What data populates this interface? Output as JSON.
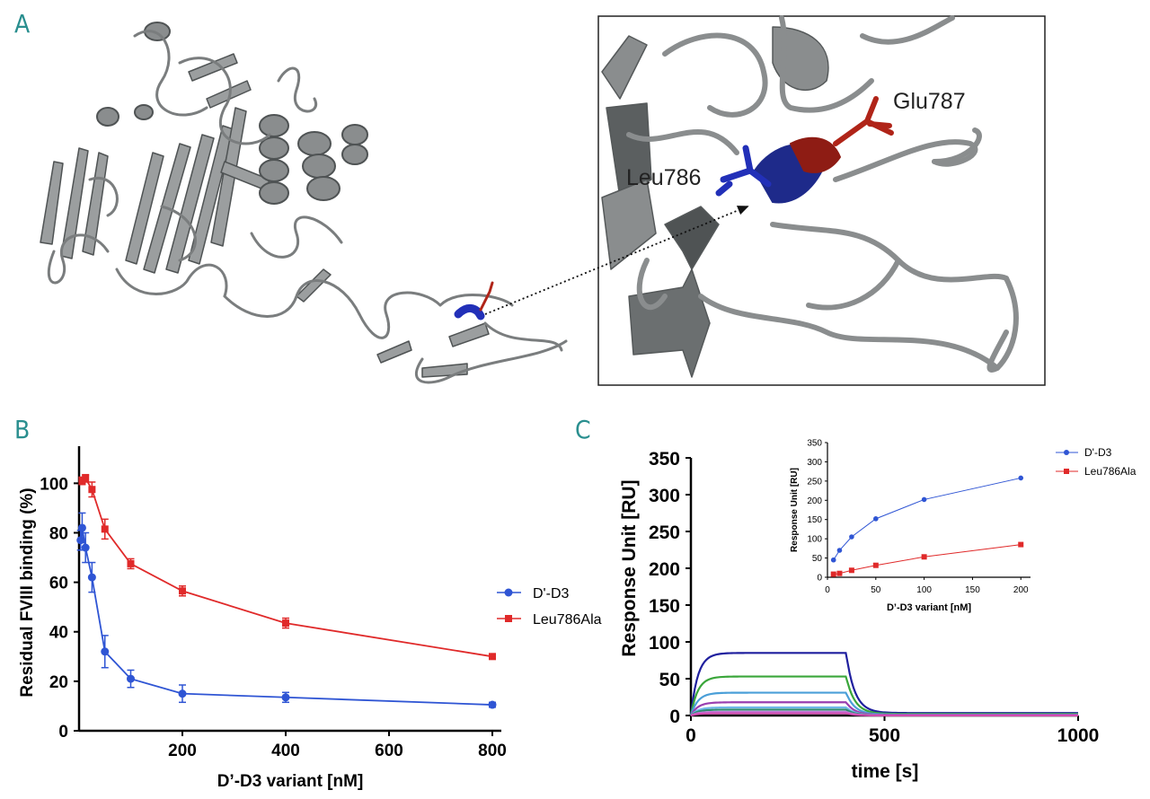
{
  "panels": {
    "a": {
      "letter": "A",
      "labels": {
        "leu": "Leu786",
        "glu": "Glu787"
      },
      "colors": {
        "ribbon": "#8a8d8e",
        "ribbon_dark": "#4f5354",
        "leu": "#2230b8",
        "glu": "#b02418"
      }
    },
    "b": {
      "letter": "B"
    },
    "c": {
      "letter": "C"
    }
  },
  "chart_data": [
    {
      "id": "B",
      "type": "line",
      "xlabel": "D’-D3 variant [nM]",
      "ylabel": "Residual FVIII binding (%)",
      "xlim": [
        0,
        800
      ],
      "ylim": [
        0,
        115
      ],
      "xticks": [
        200,
        400,
        600,
        800
      ],
      "yticks": [
        0,
        20,
        40,
        60,
        80,
        100
      ],
      "legend_position": "right",
      "series": [
        {
          "name": "D'-D3",
          "color": "#2f55d4",
          "marker": "circle",
          "x": [
            3,
            6,
            12.5,
            25,
            50,
            100,
            200,
            400,
            800
          ],
          "y": [
            77,
            82,
            74,
            62,
            32,
            21,
            15,
            13.5,
            10.5
          ],
          "err": [
            4,
            6,
            6,
            6,
            6.5,
            3.5,
            3.5,
            2,
            1
          ]
        },
        {
          "name": "Leu786Ala",
          "color": "#e02a2a",
          "marker": "square",
          "x": [
            6,
            12.5,
            25,
            50,
            100,
            200,
            400,
            800
          ],
          "y": [
            101,
            102,
            97.5,
            81.5,
            67.5,
            56.5,
            43.5,
            30
          ],
          "err": [
            1.5,
            1.5,
            3,
            4,
            2,
            2,
            2,
            1
          ]
        }
      ]
    },
    {
      "id": "C",
      "type": "line",
      "xlabel": "time [s]",
      "ylabel": "Response Unit [RU]",
      "xlim": [
        0,
        1000
      ],
      "ylim": [
        0,
        350
      ],
      "xticks": [
        0,
        500,
        1000
      ],
      "yticks": [
        0,
        50,
        100,
        150,
        200,
        250,
        300,
        350
      ],
      "series": [
        {
          "color": "#1f1f9e",
          "plateau": 85
        },
        {
          "color": "#3aa63a",
          "plateau": 53
        },
        {
          "color": "#4a9fd8",
          "plateau": 31
        },
        {
          "color": "#9a3fb0",
          "plateau": 18
        },
        {
          "color": "#6fb7e8",
          "plateau": 11
        },
        {
          "color": "#2e8b6e",
          "plateau": 8
        },
        {
          "color": "#c07ad8",
          "plateau": 5
        },
        {
          "color": "#d24bb0",
          "plateau": 3
        }
      ],
      "association_end": 400
    },
    {
      "id": "C-inset",
      "type": "line",
      "xlabel": "D’-D3 variant [nM]",
      "ylabel": "Response Unit [RU]",
      "xlim": [
        0,
        210
      ],
      "ylim": [
        0,
        350
      ],
      "xticks": [
        0,
        50,
        100,
        150,
        200
      ],
      "yticks": [
        0,
        50,
        100,
        150,
        200,
        250,
        300,
        350
      ],
      "legend_position": "right",
      "series": [
        {
          "name": "D'-D3",
          "color": "#2f55d4",
          "marker": "circle",
          "x": [
            6.25,
            12.5,
            25,
            50,
            100,
            200
          ],
          "y": [
            45,
            70,
            105,
            152,
            202,
            258
          ]
        },
        {
          "name": "Leu786Ala",
          "color": "#e02a2a",
          "marker": "square",
          "x": [
            6.25,
            12.5,
            25,
            50,
            100,
            200
          ],
          "y": [
            8,
            10,
            18,
            31,
            53,
            85
          ]
        }
      ]
    }
  ]
}
